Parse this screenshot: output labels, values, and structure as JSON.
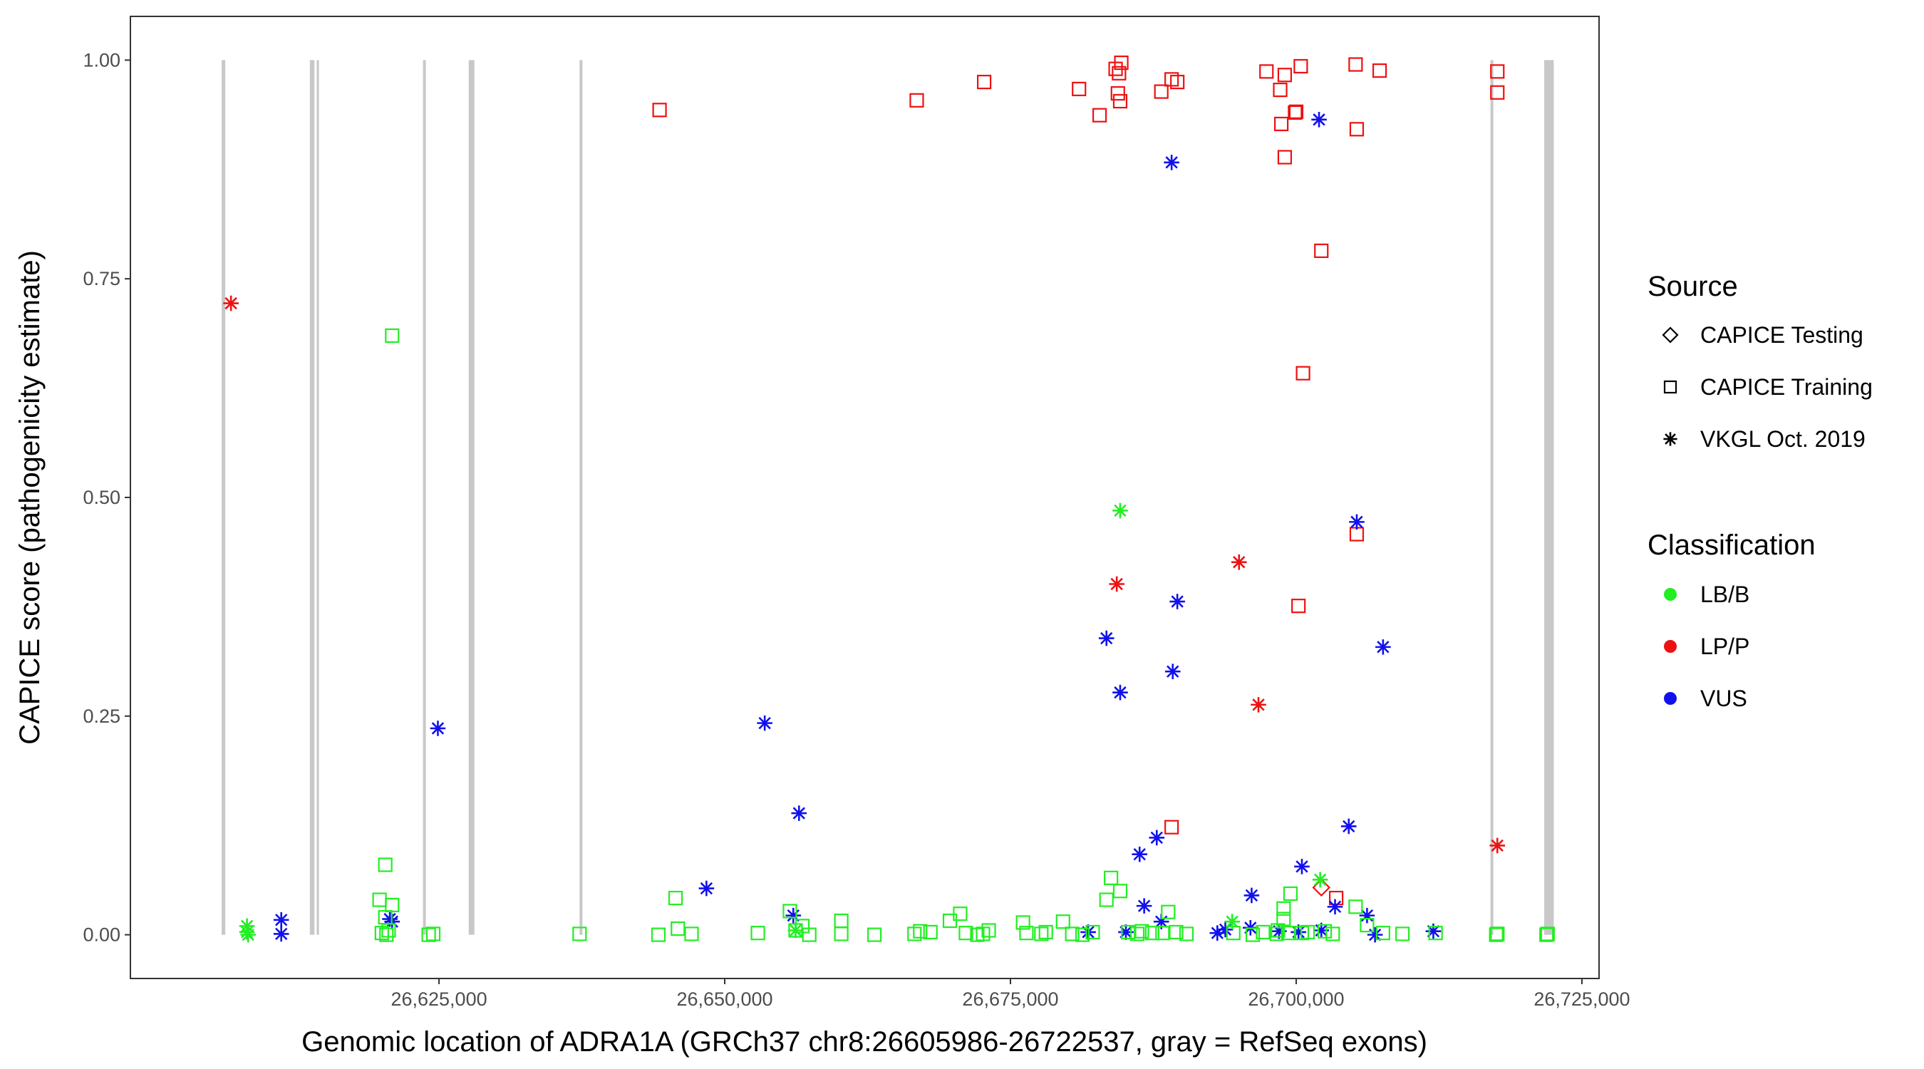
{
  "chart_data": {
    "type": "scatter",
    "xlabel": "Genomic location of ADRA1A (GRCh37 chr8:26605986-26722537, gray = RefSeq exons)",
    "ylabel": "CAPICE score (pathogenicity estimate)",
    "xlim": [
      26598000,
      26726500
    ],
    "ylim": [
      -0.05,
      1.05
    ],
    "x_ticks": [
      26625000,
      26650000,
      26675000,
      26700000,
      26725000
    ],
    "x_tick_labels": [
      "26,625,000",
      "26,650,000",
      "26,675,000",
      "26,700,000",
      "26,725,000"
    ],
    "y_ticks": [
      0,
      0.25,
      0.5,
      0.75,
      1.0
    ],
    "y_tick_labels": [
      "0.00",
      "0.25",
      "0.50",
      "0.75",
      "1.00"
    ],
    "grid": false,
    "exons_gray": [
      [
        26605986,
        26606300
      ],
      [
        26613700,
        26614100
      ],
      [
        26614300,
        26614500
      ],
      [
        26623600,
        26623850
      ],
      [
        26627600,
        26628100
      ],
      [
        26637300,
        26637550
      ],
      [
        26717000,
        26717250
      ],
      [
        26721700,
        26722537
      ]
    ],
    "legend": {
      "placement": "right",
      "source": {
        "title": "Source",
        "entries": [
          {
            "label": "CAPICE Testing",
            "shape": "diamond"
          },
          {
            "label": "CAPICE Training",
            "shape": "square"
          },
          {
            "label": "VKGL Oct. 2019",
            "shape": "asterisk"
          }
        ]
      },
      "classification": {
        "title": "Classification",
        "entries": [
          {
            "label": "LB/B",
            "color": "#22ee22"
          },
          {
            "label": "LP/P",
            "color": "#ee1111"
          },
          {
            "label": "VUS",
            "color": "#1111ee"
          }
        ]
      }
    },
    "series": [
      {
        "classification": "LP/P",
        "source": "CAPICE Training",
        "color": "#ee1111",
        "shape": "square",
        "x": [
          26644300,
          26666800,
          26672700,
          26681000,
          26682800,
          26684200,
          26684400,
          26684600,
          26684700,
          26684500,
          26688200,
          26689100,
          26689600,
          26697400,
          26698600,
          26699000,
          26700000,
          26700400,
          26705200,
          26707300,
          26717600,
          26717600,
          26698700,
          26699000,
          26699900,
          26702200,
          26705300,
          26700600,
          26689100,
          26705300,
          26700200,
          26703500
        ],
        "y": [
          0.943,
          0.954,
          0.975,
          0.967,
          0.937,
          0.99,
          0.962,
          0.953,
          0.997,
          0.985,
          0.964,
          0.978,
          0.975,
          0.987,
          0.966,
          0.983,
          0.941,
          0.993,
          0.995,
          0.988,
          0.987,
          0.963,
          0.927,
          0.889,
          0.94,
          0.782,
          0.921,
          0.642,
          0.123,
          0.458,
          0.376,
          0.042
        ]
      },
      {
        "classification": "LP/P",
        "source": "VKGL Oct. 2019",
        "color": "#ee1111",
        "shape": "asterisk",
        "x": [
          26606800,
          26684300,
          26695000,
          26696700,
          26717600
        ],
        "y": [
          0.722,
          0.401,
          0.426,
          0.263,
          0.102
        ]
      },
      {
        "classification": "LP/P",
        "source": "CAPICE Testing",
        "color": "#ee1111",
        "shape": "diamond",
        "x": [
          26702200
        ],
        "y": [
          0.054
        ]
      },
      {
        "classification": "VUS",
        "source": "VKGL Oct. 2019",
        "color": "#1111ee",
        "shape": "asterisk",
        "x": [
          26689100,
          26702000,
          26620900,
          26624900,
          26653500,
          26656500,
          26648400,
          26656000,
          26684600,
          26683400,
          26689600,
          26689200,
          26705300,
          26707600,
          26704600,
          26687800,
          26686300,
          26686700,
          26700500,
          26696100,
          26703400,
          26706200,
          26712000,
          26693100,
          26681800,
          26696000,
          26700200,
          26702200,
          26706900,
          26611200,
          26611200,
          26620700,
          26685100,
          26688200,
          26698500,
          26693800
        ],
        "y": [
          0.883,
          0.932,
          0.015,
          0.236,
          0.242,
          0.139,
          0.053,
          0.022,
          0.277,
          0.339,
          0.381,
          0.301,
          0.472,
          0.329,
          0.124,
          0.111,
          0.092,
          0.033,
          0.078,
          0.045,
          0.032,
          0.022,
          0.004,
          0.002,
          0.003,
          0.008,
          0.003,
          0.005,
          0.0,
          0.017,
          0.001,
          0.018,
          0.003,
          0.015,
          0.004,
          0.006
        ]
      },
      {
        "classification": "LB/B",
        "source": "CAPICE Training",
        "color": "#22ee22",
        "shape": "square",
        "x": [
          26620900,
          26620300,
          26619800,
          26620300,
          26620900,
          26620000,
          26620600,
          26620400,
          26624100,
          26624500,
          26637300,
          26644200,
          26645700,
          26645900,
          26647100,
          26652900,
          26655700,
          26656200,
          26656800,
          26657400,
          26660200,
          26660200,
          26663100,
          26666600,
          26667100,
          26668000,
          26669700,
          26670600,
          26671100,
          26672100,
          26672600,
          26673100,
          26676100,
          26676400,
          26677700,
          26678100,
          26679600,
          26680400,
          26681300,
          26682200,
          26683400,
          26683800,
          26684600,
          26685300,
          26686100,
          26686500,
          26687400,
          26688300,
          26688800,
          26689500,
          26690400,
          26694500,
          26696200,
          26697100,
          26698300,
          26698900,
          26699500,
          26700500,
          26701000,
          26702500,
          26703200,
          26705200,
          26706200,
          26707600,
          26709300,
          26712200,
          26717600,
          26717600,
          26722000,
          26721900,
          26717500,
          26698900,
          26698400,
          26699300
        ],
        "y": [
          0.685,
          0.08,
          0.04,
          0.02,
          0.034,
          0.002,
          0.005,
          0.0,
          0.0,
          0.001,
          0.001,
          0.0,
          0.042,
          0.007,
          0.001,
          0.002,
          0.027,
          0.005,
          0.01,
          0.0,
          0.001,
          0.016,
          0.0,
          0.001,
          0.004,
          0.003,
          0.016,
          0.024,
          0.002,
          0.0,
          0.001,
          0.005,
          0.014,
          0.002,
          0.001,
          0.003,
          0.015,
          0.001,
          0.0,
          0.003,
          0.04,
          0.065,
          0.05,
          0.003,
          0.001,
          0.004,
          0.002,
          0.002,
          0.026,
          0.003,
          0.001,
          0.002,
          0.0,
          0.003,
          0.001,
          0.03,
          0.047,
          0.002,
          0.003,
          0.004,
          0.001,
          0.032,
          0.011,
          0.002,
          0.001,
          0.002,
          0.001,
          0.001,
          0.001,
          0.0,
          0.0,
          0.018,
          0.005,
          0.002
        ]
      },
      {
        "classification": "LB/B",
        "source": "VKGL Oct. 2019",
        "color": "#22ee22",
        "shape": "asterisk",
        "x": [
          26684600,
          26608200,
          26608200,
          26608300,
          26694400,
          26702100,
          26656200
        ],
        "y": [
          0.485,
          0.01,
          0.003,
          0.0,
          0.015,
          0.063,
          0.005
        ]
      }
    ]
  }
}
